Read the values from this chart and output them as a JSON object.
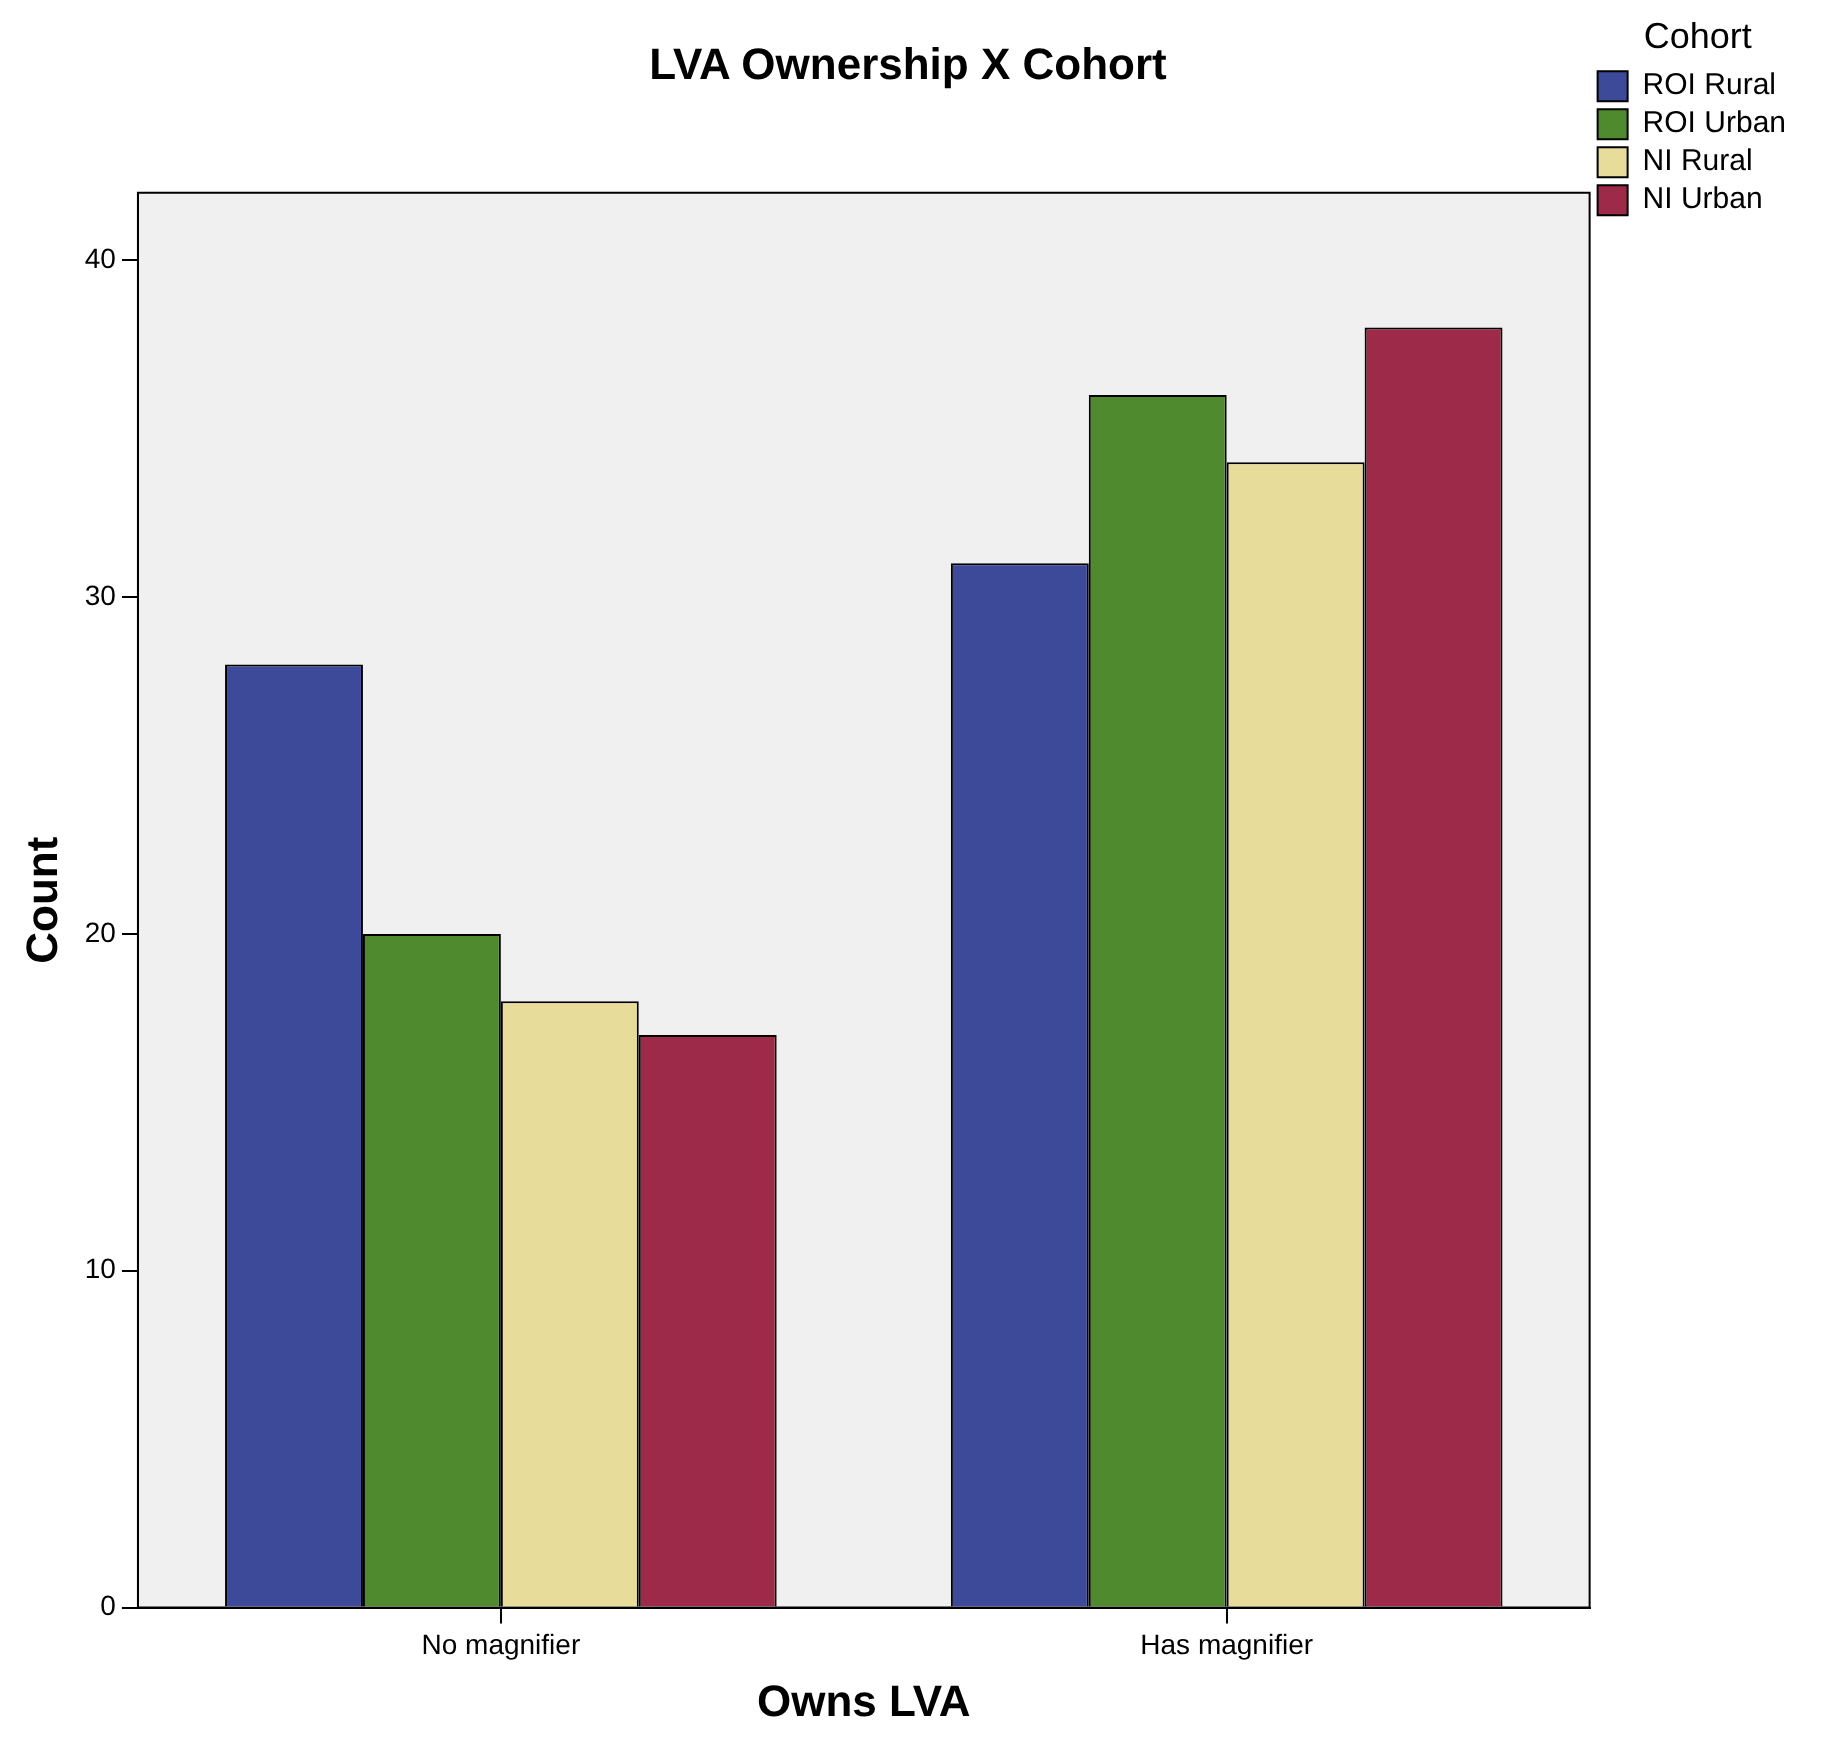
{
  "chart_data": {
    "type": "bar",
    "title": "LVA Ownership X Cohort",
    "xlabel": "Owns LVA",
    "ylabel": "Count",
    "legend_title": "Cohort",
    "categories": [
      "No magnifier",
      "Has magnifier"
    ],
    "series": [
      {
        "name": "ROI Rural",
        "color": "#3d4a9a",
        "values": [
          28,
          31
        ]
      },
      {
        "name": "ROI Urban",
        "color": "#4f8a2e",
        "values": [
          20,
          36
        ]
      },
      {
        "name": "NI Rural",
        "color": "#e8dc9b",
        "values": [
          18,
          34
        ]
      },
      {
        "name": "NI Urban",
        "color": "#9e2a4a",
        "values": [
          17,
          38
        ]
      }
    ],
    "ylim": [
      0,
      42
    ],
    "yticks": [
      0,
      10,
      20,
      30,
      40
    ],
    "grid": false,
    "legend": "right"
  }
}
